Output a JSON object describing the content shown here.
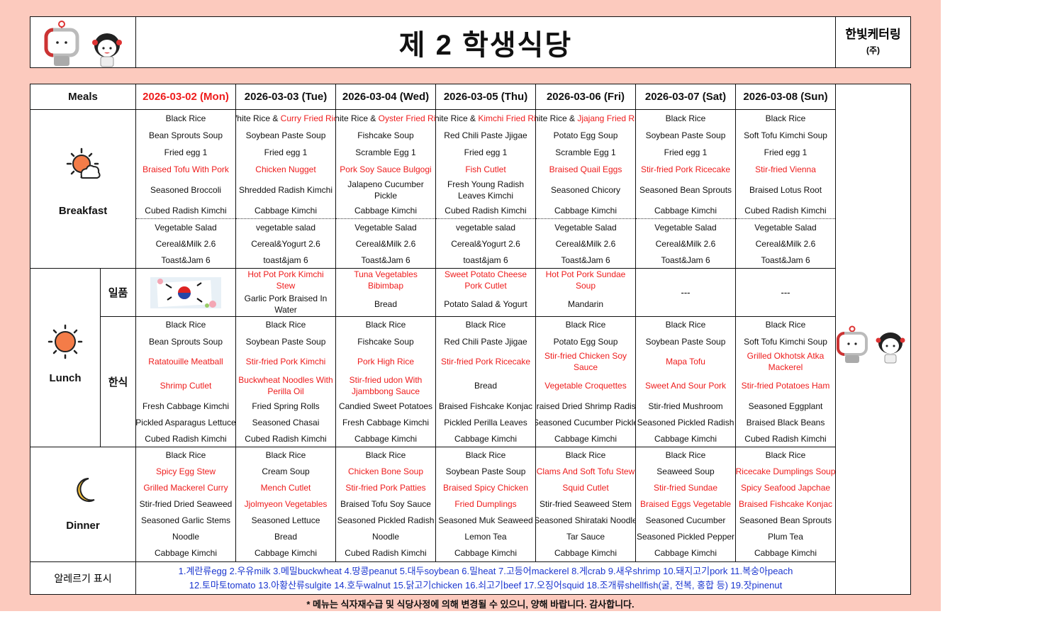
{
  "header": {
    "title": "제 2 학생식당",
    "company": "한빛케터링",
    "company_suffix": "(주)"
  },
  "table": {
    "meals_header": "Meals",
    "days": [
      {
        "label": "2026-03-02 (Mon)",
        "highlight": true
      },
      {
        "label": "2026-03-03 (Tue)",
        "highlight": false
      },
      {
        "label": "2026-03-04 (Wed)",
        "highlight": false
      },
      {
        "label": "2026-03-05 (Thu)",
        "highlight": false
      },
      {
        "label": "2026-03-06 (Fri)",
        "highlight": false
      },
      {
        "label": "2026-03-07 (Sat)",
        "highlight": false
      },
      {
        "label": "2026-03-08 (Sun)",
        "highlight": false
      }
    ],
    "breakfast": {
      "label": "Breakfast",
      "icon": "sun-cloud-icon",
      "menus": [
        [
          "Black Rice",
          "Bean Sprouts Soup",
          "Fried egg 1",
          {
            "r": "Braised Tofu With Pork"
          },
          "Seasoned Broccoli",
          "Cubed Radish Kimchi",
          "Vegetable Salad",
          "Cereal&Milk 2.6",
          "Toast&Jam 6"
        ],
        [
          {
            "t": "White Rice & ",
            "r": "Curry Fried Rice"
          },
          "Soybean Paste Soup",
          "Fried egg 1",
          {
            "r": "Chicken Nugget"
          },
          "Shredded Radish Kimchi",
          "Cabbage Kimchi",
          "vegetable salad",
          "Cereal&Yogurt 2.6",
          "toast&jam 6"
        ],
        [
          {
            "t": "White Rice & ",
            "r": "Oyster Fried Rice"
          },
          "Fishcake Soup",
          "Scramble Egg 1",
          {
            "r": "Pork Soy Sauce Bulgogi"
          },
          "Jalapeno Cucumber Pickle",
          "Cabbage Kimchi",
          "Vegetable Salad",
          "Cereal&Milk 2.6",
          "Toast&Jam 6"
        ],
        [
          {
            "t": "White Rice & ",
            "r": "Kimchi Fried Rice"
          },
          "Red Chili Paste Jjigae",
          "Fried egg 1",
          {
            "r": "Fish Cutlet"
          },
          "Fresh Young Radish Leaves Kimchi",
          "Cubed Radish Kimchi",
          "vegetable salad",
          "Cereal&Yogurt 2.6",
          "toast&jam 6"
        ],
        [
          {
            "t": "White Rice & ",
            "r": "Jjajang Fried Rice"
          },
          "Potato Egg Soup",
          "Scramble Egg 1",
          {
            "r": "Braised Quail Eggs"
          },
          "Seasoned Chicory",
          "Cabbage Kimchi",
          "Vegetable Salad",
          "Cereal&Milk 2.6",
          "Toast&Jam 6"
        ],
        [
          "Black Rice",
          "Soybean Paste Soup",
          "Fried egg 1",
          {
            "r": "Stir-fried Pork Ricecake"
          },
          "Seasoned Bean Sprouts",
          "Cabbage Kimchi",
          "Vegetable Salad",
          "Cereal&Milk 2.6",
          "Toast&Jam 6"
        ],
        [
          "Black Rice",
          "Soft Tofu Kimchi Soup",
          "Fried egg 1",
          {
            "r": "Stir-fried Vienna"
          },
          "Braised Lotus Root",
          "Cubed Radish Kimchi",
          "Vegetable Salad",
          "Cereal&Milk 2.6",
          "Toast&Jam 6"
        ]
      ]
    },
    "lunch": {
      "label": "Lunch",
      "icon": "sun-icon",
      "special_label": "일품",
      "korean_label": "한식",
      "special": [
        {
          "image": "korean-flag-image"
        },
        [
          {
            "r": "Hot Pot Pork Kimchi Stew"
          },
          "Garlic Pork Braised In Water"
        ],
        [
          {
            "r": "Tuna Vegetables Bibimbap"
          },
          "Bread"
        ],
        [
          {
            "r": "Sweet Potato Cheese Pork Cutlet"
          },
          "Potato Salad & Yogurt"
        ],
        [
          {
            "r": "Hot Pot Pork Sundae Soup"
          },
          "Mandarin"
        ],
        [
          "---"
        ],
        [
          "---"
        ]
      ],
      "korean": [
        [
          "Black Rice",
          "Bean Sprouts Soup",
          {
            "r": "Ratatouille Meatball"
          },
          {
            "r": "Shrimp Cutlet"
          },
          "Fresh Cabbage Kimchi",
          "Pickled Asparagus Lettuce",
          "Cubed Radish Kimchi"
        ],
        [
          "Black Rice",
          "Soybean Paste Soup",
          {
            "r": "Stir-fried Pork Kimchi"
          },
          {
            "r": "Buckwheat Noodles With Perilla Oil"
          },
          "Fried Spring Rolls",
          "Seasoned Chasai",
          "Cubed Radish Kimchi"
        ],
        [
          "Black Rice",
          "Fishcake Soup",
          {
            "r": "Pork High Rice"
          },
          {
            "r": "Stir-fried udon With Jjambbong Sauce"
          },
          "Candied Sweet Potatoes",
          "Fresh Cabbage Kimchi",
          "Cabbage Kimchi"
        ],
        [
          "Black Rice",
          "Red Chili Paste Jjigae",
          {
            "r": "Stir-fried Pork Ricecake"
          },
          "Bread",
          "Braised Fishcake Konjac",
          "Pickled Perilla Leaves",
          "Cabbage Kimchi"
        ],
        [
          "Black Rice",
          "Potato Egg Soup",
          {
            "r": "Stir-fried Chicken Soy Sauce"
          },
          {
            "r": "Vegetable Croquettes"
          },
          "Braised Dried Shrimp Radish",
          "Seasoned Cucumber Pickle",
          "Cabbage Kimchi"
        ],
        [
          "Black Rice",
          "Soybean Paste Soup",
          {
            "r": "Mapa Tofu"
          },
          {
            "r": "Sweet And Sour Pork"
          },
          "Stir-fried Mushroom",
          "Seasoned Pickled Radish",
          "Cabbage Kimchi"
        ],
        [
          "Black Rice",
          "Soft Tofu Kimchi Soup",
          {
            "r": "Grilled Okhotsk Atka Mackerel"
          },
          {
            "r": "Stir-fried Potatoes Ham"
          },
          "Seasoned Eggplant",
          "Braised Black Beans",
          "Cubed Radish Kimchi"
        ]
      ]
    },
    "dinner": {
      "label": "Dinner",
      "icon": "moon-icon",
      "menus": [
        [
          "Black Rice",
          {
            "r": "Spicy Egg Stew"
          },
          {
            "r": "Grilled Mackerel Curry"
          },
          "Stir-fried Dried Seaweed",
          "Seasoned Garlic Stems",
          "Noodle",
          "Cabbage Kimchi"
        ],
        [
          "Black Rice",
          "Cream Soup",
          {
            "r": "Mench Cutlet"
          },
          {
            "r": "Jjolmyeon Vegetables"
          },
          "Seasoned Lettuce",
          "Bread",
          "Cabbage Kimchi"
        ],
        [
          "Black Rice",
          {
            "r": "Chicken Bone Soup"
          },
          {
            "r": "Stir-fried Pork Patties"
          },
          "Braised Tofu Soy Sauce",
          "Seasoned Pickled Radish",
          "Noodle",
          "Cubed Radish Kimchi"
        ],
        [
          "Black Rice",
          "Soybean Paste Soup",
          {
            "r": "Braised Spicy Chicken"
          },
          {
            "r": "Fried Dumplings"
          },
          "Seasoned Muk Seaweed",
          "Lemon Tea",
          "Cabbage Kimchi"
        ],
        [
          "Black Rice",
          {
            "r": "Clams And Soft Tofu Stew"
          },
          {
            "r": "Squid Cutlet"
          },
          "Stir-fried Seaweed Stem",
          "Seasoned Shirataki Noodle",
          "Tar Sauce",
          "Cabbage Kimchi"
        ],
        [
          "Black Rice",
          "Seaweed Soup",
          {
            "r": "Stir-fried Sundae"
          },
          {
            "r": "Braised Eggs Vegetable"
          },
          "Seasoned Cucumber",
          "Seasoned Pickled Pepper",
          "Cabbage Kimchi"
        ],
        [
          "Black Rice",
          {
            "r": "Ricecake Dumplings Soup"
          },
          {
            "r": "Spicy Seafood Japchae"
          },
          {
            "r": "Braised Fishcake Konjac"
          },
          "Seasoned Bean Sprouts",
          "Plum Tea",
          "Cabbage Kimchi"
        ]
      ]
    },
    "allergy": {
      "label": "알레르기 표시",
      "line1": "1.계란류egg 2.우유milk 3.메밀buckwheat 4.땅콩peanut 5.대두soybean 6.밀heat 7.고등어mackerel 8.게crab 9.새우shrimp 10.돼지고기pork 11.복숭아peach",
      "line2": "12.토마토tomato 13.아황산류sulgite 14.호두walnut 15.닭고기chicken 16.쇠고기beef 17.오징어squid 18.조개류shellfish(굴, 전복, 홍합 등) 19.잣pinenut"
    }
  },
  "footer_note": "* 메뉴는 식자재수급 및 식당사정에 의해 변경될 수 있으니, 양해 바랍니다. 감사합니다.",
  "colors": {
    "background": "#fccabe",
    "highlight_red": "#ee1c1c",
    "allergy_blue": "#1a35cf"
  }
}
